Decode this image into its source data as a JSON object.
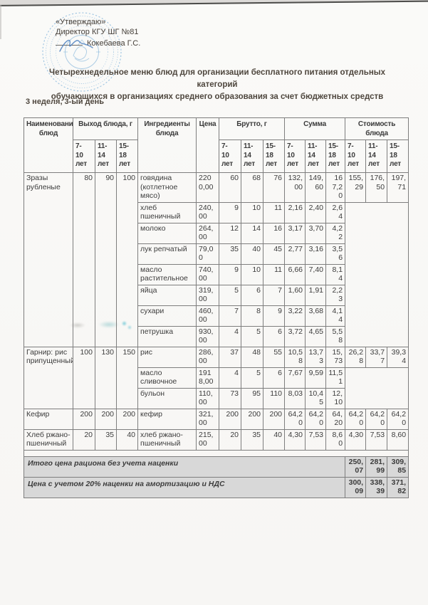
{
  "document": {
    "approval": {
      "approve_word": "«Утверждаю»",
      "position_line": "Директор КГУ ШГ №81",
      "signer_name": "Кокебаева Г.С."
    },
    "title_line1": "Четырехнедельное меню блюд для организации бесплатного питания отдельных категорий",
    "title_line2": "обучающихся в организациях среднего образования за счет бюджетных средств",
    "week_day_label": "3 неделя, 3-ый день"
  },
  "table": {
    "headers": {
      "dish": "Наименование блюд",
      "output": "Выход блюда, г",
      "ingredients": "Ингредиенты блюда",
      "price": "Цена",
      "brutto": "Брутто, г",
      "sum": "Сумма",
      "cost": "Стоимость блюда",
      "age_groups": [
        "7-10 лет",
        "11-14 лет",
        "15-18 лет"
      ]
    },
    "dishes": [
      {
        "name": "Зразы рубленые",
        "output": [
          "80",
          "90",
          "100"
        ],
        "cost": [
          "155,29",
          "176,50",
          "197,71"
        ],
        "ingredients": [
          {
            "name": "говядина (котлетное мясо)",
            "price": "2200,00",
            "brutto": [
              "60",
              "68",
              "76"
            ],
            "sum": [
              "132,00",
              "149,60",
              "167,20"
            ]
          },
          {
            "name": "хлеб пшеничный",
            "price": "240,00",
            "brutto": [
              "9",
              "10",
              "11"
            ],
            "sum": [
              "2,16",
              "2,40",
              "2,64"
            ]
          },
          {
            "name": "молоко",
            "price": "264,00",
            "brutto": [
              "12",
              "14",
              "16"
            ],
            "sum": [
              "3,17",
              "3,70",
              "4,22"
            ]
          },
          {
            "name": "лук репчатый",
            "price": "79,00",
            "brutto": [
              "35",
              "40",
              "45"
            ],
            "sum": [
              "2,77",
              "3,16",
              "3,56"
            ]
          },
          {
            "name": "масло растительное",
            "price": "740,00",
            "brutto": [
              "9",
              "10",
              "11"
            ],
            "sum": [
              "6,66",
              "7,40",
              "8,14"
            ]
          },
          {
            "name": "яйца",
            "price": "319,00",
            "brutto": [
              "5",
              "6",
              "7"
            ],
            "sum": [
              "1,60",
              "1,91",
              "2,23"
            ]
          },
          {
            "name": "сухари",
            "price": "460,00",
            "brutto": [
              "7",
              "8",
              "9"
            ],
            "sum": [
              "3,22",
              "3,68",
              "4,14"
            ]
          },
          {
            "name": "петрушка",
            "price": "930,00",
            "brutto": [
              "4",
              "5",
              "6"
            ],
            "sum": [
              "3,72",
              "4,65",
              "5,58"
            ]
          }
        ]
      },
      {
        "name": "Гарнир: рис припущенный",
        "output": [
          "100",
          "130",
          "150"
        ],
        "cost": [
          "26,28",
          "33,77",
          "39,34"
        ],
        "ingredients": [
          {
            "name": "рис",
            "price": "286,00",
            "brutto": [
              "37",
              "48",
              "55"
            ],
            "sum": [
              "10,58",
              "13,73",
              "15,73"
            ]
          },
          {
            "name": "масло сливочное",
            "price": "1918,00",
            "brutto": [
              "4",
              "5",
              "6"
            ],
            "sum": [
              "7,67",
              "9,59",
              "11,51"
            ]
          },
          {
            "name": "бульон",
            "price": "110,00",
            "brutto": [
              "73",
              "95",
              "110"
            ],
            "sum": [
              "8,03",
              "10,45",
              "12,10"
            ]
          }
        ]
      },
      {
        "name": "Кефир",
        "output": [
          "200",
          "200",
          "200"
        ],
        "cost": [
          "64,20",
          "64,20",
          "64,20"
        ],
        "ingredients": [
          {
            "name": "кефир",
            "price": "321,00",
            "brutto": [
              "200",
              "200",
              "200"
            ],
            "sum": [
              "64,20",
              "64,20",
              "64,20"
            ]
          }
        ]
      },
      {
        "name": "Хлеб ржано-пшеничный",
        "output": [
          "20",
          "35",
          "40"
        ],
        "cost": [
          "4,30",
          "7,53",
          "8,60"
        ],
        "ingredients": [
          {
            "name": "хлеб ржано-пшеничный",
            "price": "215,00",
            "brutto": [
              "20",
              "35",
              "40"
            ],
            "sum": [
              "4,30",
              "7,53",
              "8,60"
            ]
          }
        ]
      }
    ],
    "totals": [
      {
        "label": "Итого цена рациона без учета наценки",
        "values": [
          "250,07",
          "281,99",
          "309,85"
        ]
      },
      {
        "label": "Цена с учетом 20% наценки на амортизацию и НДС",
        "values": [
          "300,09",
          "338,39",
          "371,82"
        ]
      }
    ]
  },
  "colors": {
    "stamp_blue": "#7fb2da",
    "signature_blue": "#4a7fbf",
    "table_border": "#7e7e7e",
    "totals_background": "#d8d8d8",
    "text": "#3c3c3c"
  }
}
